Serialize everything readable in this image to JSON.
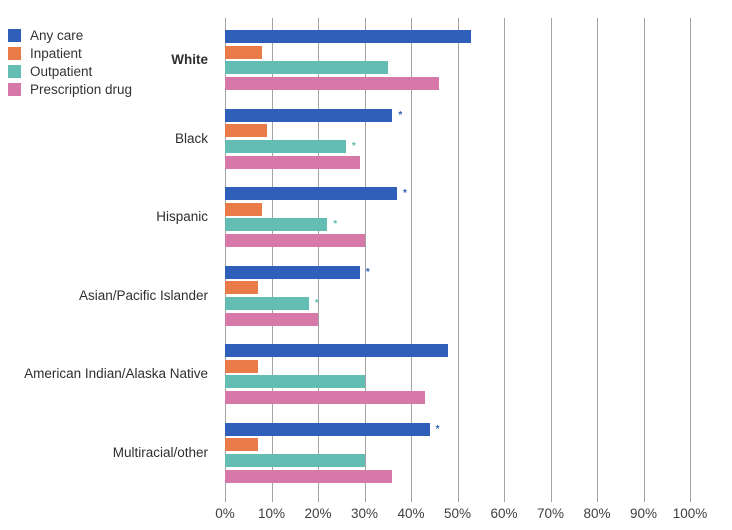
{
  "colors": {
    "background": "#FFFFFF",
    "gridline": "#A3A3A3",
    "text": "#333333"
  },
  "legend": {
    "items": [
      {
        "label": "Any care",
        "color": "#2F5FB8"
      },
      {
        "label": "Inpatient",
        "color": "#E87B47"
      },
      {
        "label": "Outpatient",
        "color": "#64BDB3"
      },
      {
        "label": "Prescription drug",
        "color": "#D779A8"
      }
    ]
  },
  "chart_data": {
    "type": "bar",
    "orientation": "horizontal",
    "title": "",
    "xlabel": "",
    "ylabel": "",
    "xlim": [
      0,
      100
    ],
    "x_ticks": [
      "0%",
      "10%",
      "20%",
      "30%",
      "40%",
      "50%",
      "60%",
      "70%",
      "80%",
      "90%",
      "100%"
    ],
    "grid": true,
    "legend_position": "top-left",
    "significance_marker": "*",
    "series": [
      {
        "name": "Any care",
        "color": "#2F5FB8"
      },
      {
        "name": "Inpatient",
        "color": "#E87B47"
      },
      {
        "name": "Outpatient",
        "color": "#64BDB3"
      },
      {
        "name": "Prescription drug",
        "color": "#D779A8"
      }
    ],
    "categories": [
      "White",
      "Black",
      "Hispanic",
      "Asian/Pacific Islander",
      "American Indian/Alaska Native",
      "Multiracial/other"
    ],
    "groups": [
      {
        "label": "White",
        "emphasis": true,
        "values": [
          53,
          8,
          35,
          46
        ],
        "markers": [
          "",
          "",
          "",
          ""
        ]
      },
      {
        "label": "Black",
        "emphasis": false,
        "values": [
          36,
          9,
          26,
          29
        ],
        "markers": [
          "*",
          "",
          "*",
          ""
        ]
      },
      {
        "label": "Hispanic",
        "emphasis": false,
        "values": [
          37,
          8,
          22,
          30
        ],
        "markers": [
          "*",
          "",
          "*",
          ""
        ]
      },
      {
        "label": "Asian/Pacific Islander",
        "emphasis": false,
        "values": [
          29,
          7,
          18,
          20
        ],
        "markers": [
          "*",
          "",
          "*",
          ""
        ]
      },
      {
        "label": "American Indian/Alaska Native",
        "emphasis": false,
        "values": [
          48,
          7,
          30,
          43
        ],
        "markers": [
          "",
          "",
          "",
          ""
        ]
      },
      {
        "label": "Multiracial/other",
        "emphasis": false,
        "values": [
          44,
          7,
          30,
          36
        ],
        "markers": [
          "*",
          "",
          "",
          ""
        ]
      }
    ]
  }
}
